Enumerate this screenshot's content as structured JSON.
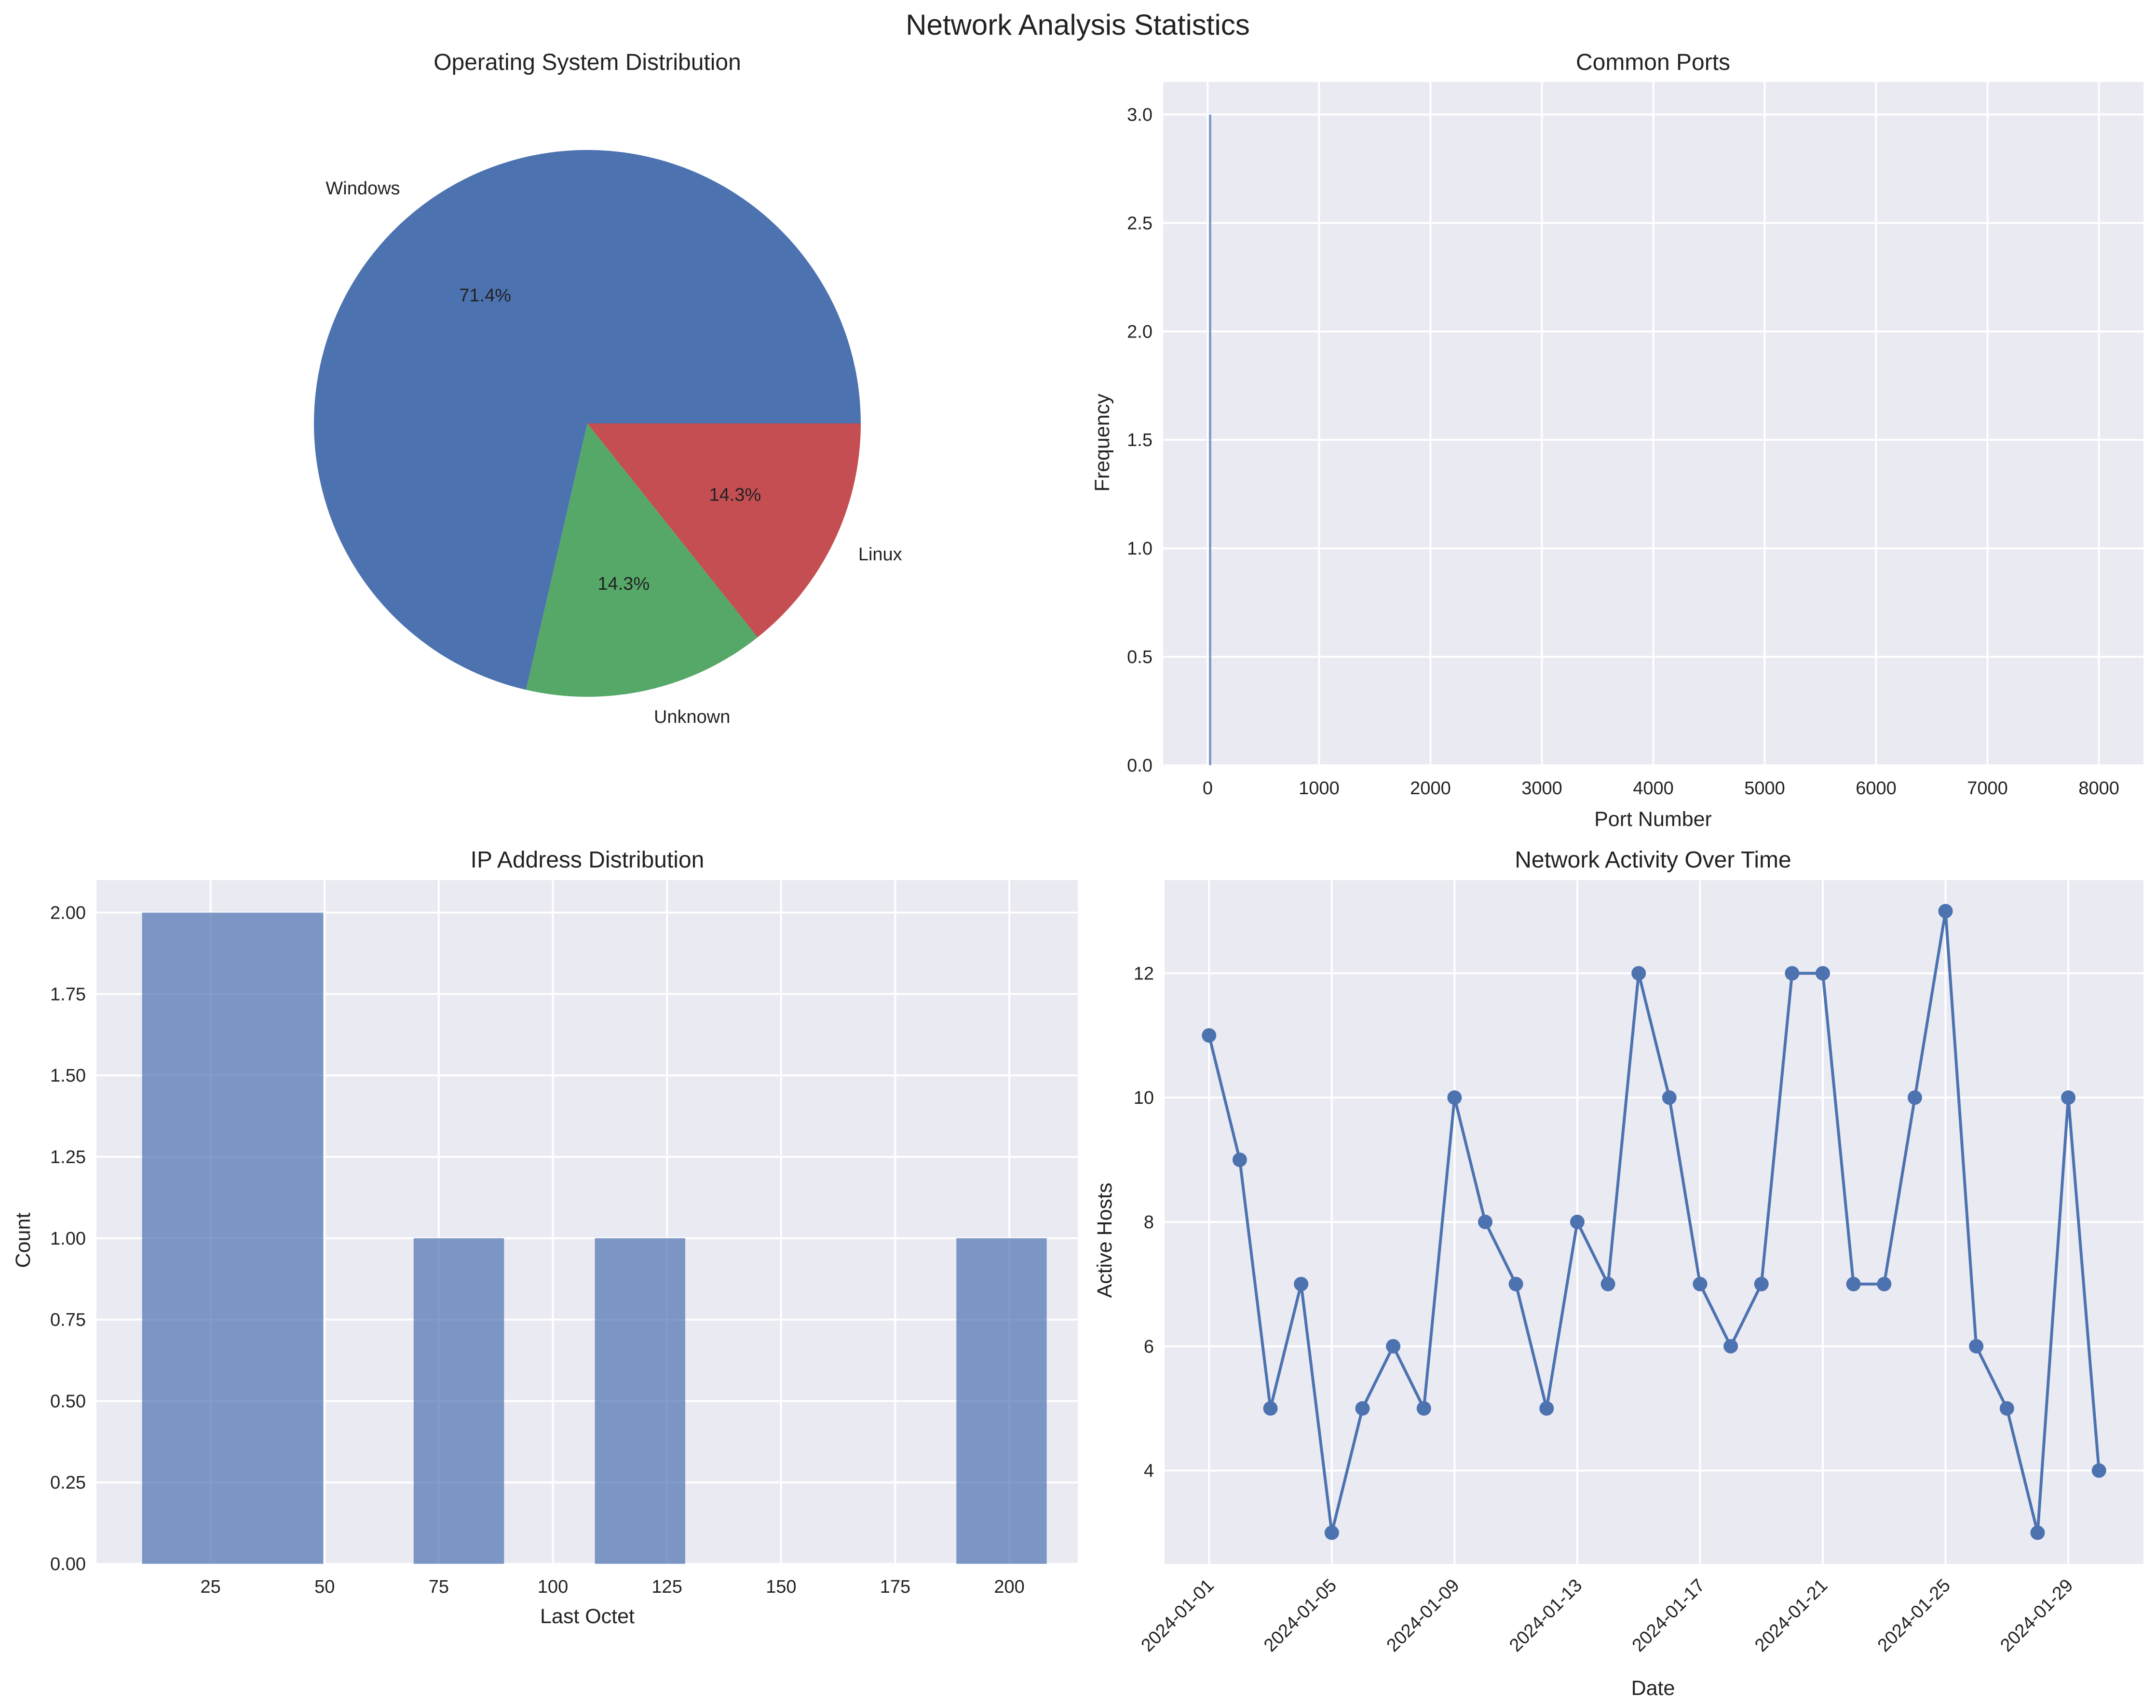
{
  "figure_title": "Network Analysis Statistics",
  "chart_data": [
    {
      "type": "pie",
      "title": "Operating System Distribution",
      "labels": [
        "Windows",
        "Unknown",
        "Linux"
      ],
      "values": [
        71.4,
        14.3,
        14.3
      ],
      "autopct": [
        "71.4%",
        "14.3%",
        "14.3%"
      ],
      "colors": [
        "#4C72B0",
        "#55A868",
        "#C44E52"
      ]
    },
    {
      "type": "bar",
      "title": "Common Ports",
      "xlabel": "Port Number",
      "ylabel": "Frequency",
      "xlim": [
        -400,
        8400
      ],
      "ylim": [
        0,
        3.15
      ],
      "xticks": [
        0,
        1000,
        2000,
        3000,
        4000,
        5000,
        6000,
        7000,
        8000
      ],
      "yticks": [
        0.0,
        0.5,
        1.0,
        1.5,
        2.0,
        2.5,
        3.0
      ],
      "ytick_labels": [
        "0.0",
        "0.5",
        "1.0",
        "1.5",
        "2.0",
        "2.5",
        "3.0"
      ],
      "bars": [
        {
          "x": 22,
          "value": 3
        }
      ],
      "color": "#4C72B0",
      "grid": true
    },
    {
      "type": "bar",
      "title": "IP Address Distribution",
      "xlabel": "Last Octet",
      "ylabel": "Count",
      "xlim": [
        0,
        215
      ],
      "ylim": [
        0,
        2.1
      ],
      "xticks": [
        25,
        50,
        75,
        100,
        125,
        150,
        175,
        200
      ],
      "yticks": [
        0.0,
        0.25,
        0.5,
        0.75,
        1.0,
        1.25,
        1.5,
        1.75,
        2.0
      ],
      "ytick_labels": [
        "0.00",
        "0.25",
        "0.50",
        "0.75",
        "1.00",
        "1.25",
        "1.50",
        "1.75",
        "2.00"
      ],
      "bins": [
        {
          "start": 10,
          "end": 49.7,
          "value": 2
        },
        {
          "start": 69.5,
          "end": 89.3,
          "value": 1
        },
        {
          "start": 109.2,
          "end": 129,
          "value": 1
        },
        {
          "start": 188.4,
          "end": 208.2,
          "value": 1
        }
      ],
      "color": "#4C72B0",
      "opacity": 0.7,
      "grid": true
    },
    {
      "type": "line",
      "title": "Network Activity Over Time",
      "xlabel": "Date",
      "ylabel": "Active Hosts",
      "ylim": [
        2.5,
        13.5
      ],
      "yticks": [
        4,
        6,
        8,
        10,
        12
      ],
      "xtick_labels": [
        "2024-01-01",
        "2024-01-05",
        "2024-01-09",
        "2024-01-13",
        "2024-01-17",
        "2024-01-21",
        "2024-01-25",
        "2024-01-29"
      ],
      "x": [
        "2024-01-01",
        "2024-01-02",
        "2024-01-03",
        "2024-01-04",
        "2024-01-05",
        "2024-01-06",
        "2024-01-07",
        "2024-01-08",
        "2024-01-09",
        "2024-01-10",
        "2024-01-11",
        "2024-01-12",
        "2024-01-13",
        "2024-01-14",
        "2024-01-15",
        "2024-01-16",
        "2024-01-17",
        "2024-01-18",
        "2024-01-19",
        "2024-01-20",
        "2024-01-21",
        "2024-01-22",
        "2024-01-23",
        "2024-01-24",
        "2024-01-25",
        "2024-01-26",
        "2024-01-27",
        "2024-01-28",
        "2024-01-29",
        "2024-01-30"
      ],
      "values": [
        11,
        9,
        5,
        7,
        3,
        5,
        6,
        5,
        10,
        8,
        7,
        5,
        8,
        7,
        12,
        10,
        7,
        6,
        7,
        12,
        12,
        7,
        7,
        10,
        13,
        6,
        5,
        3,
        10,
        4
      ],
      "color": "#4C72B0",
      "marker": "circle",
      "grid": true
    }
  ]
}
